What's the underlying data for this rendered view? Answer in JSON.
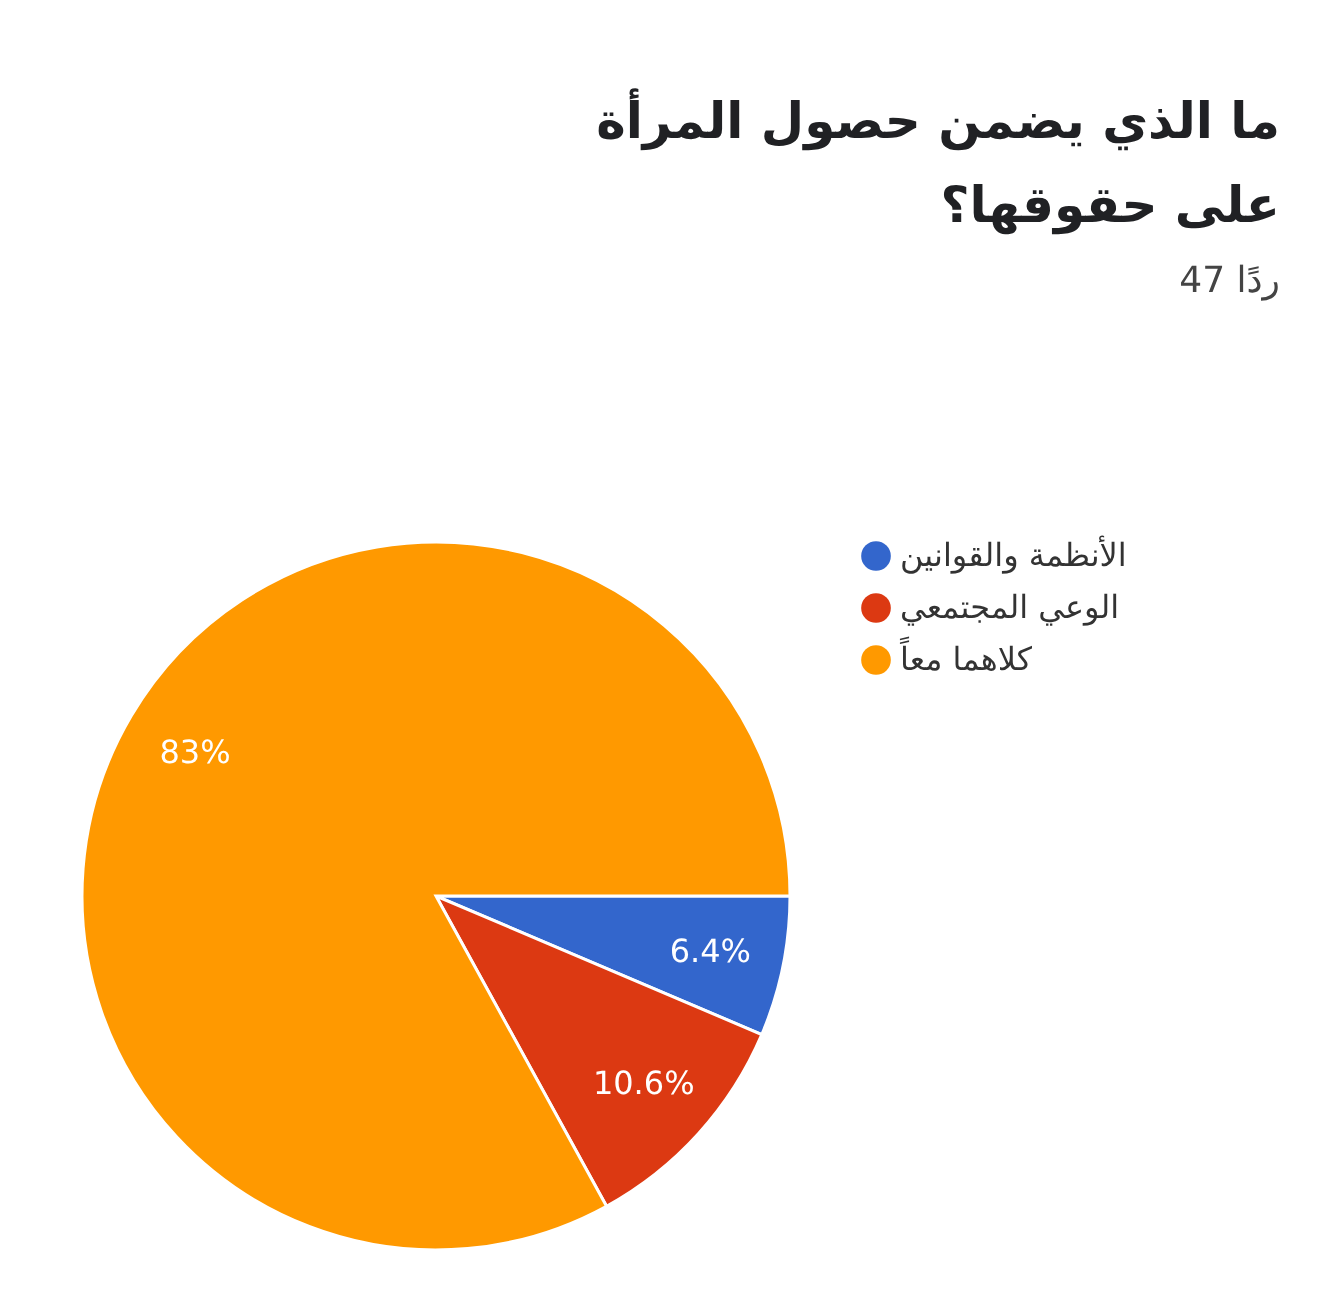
{
  "chart_data": {
    "type": "pie",
    "title": "ما الذي يضمن حصول المرأة على حقوقها؟",
    "subtitle": "47 ردًا",
    "categories": [
      "الأنظمة والقوانين",
      "الوعي المجتمعي",
      "كلاهما معاً"
    ],
    "values": [
      6.4,
      10.6,
      83
    ],
    "colors": [
      "#3366cc",
      "#dc3912",
      "#ff9900"
    ],
    "value_labels": [
      "6.4%",
      "10.6%",
      "83%"
    ],
    "legend": "right"
  }
}
